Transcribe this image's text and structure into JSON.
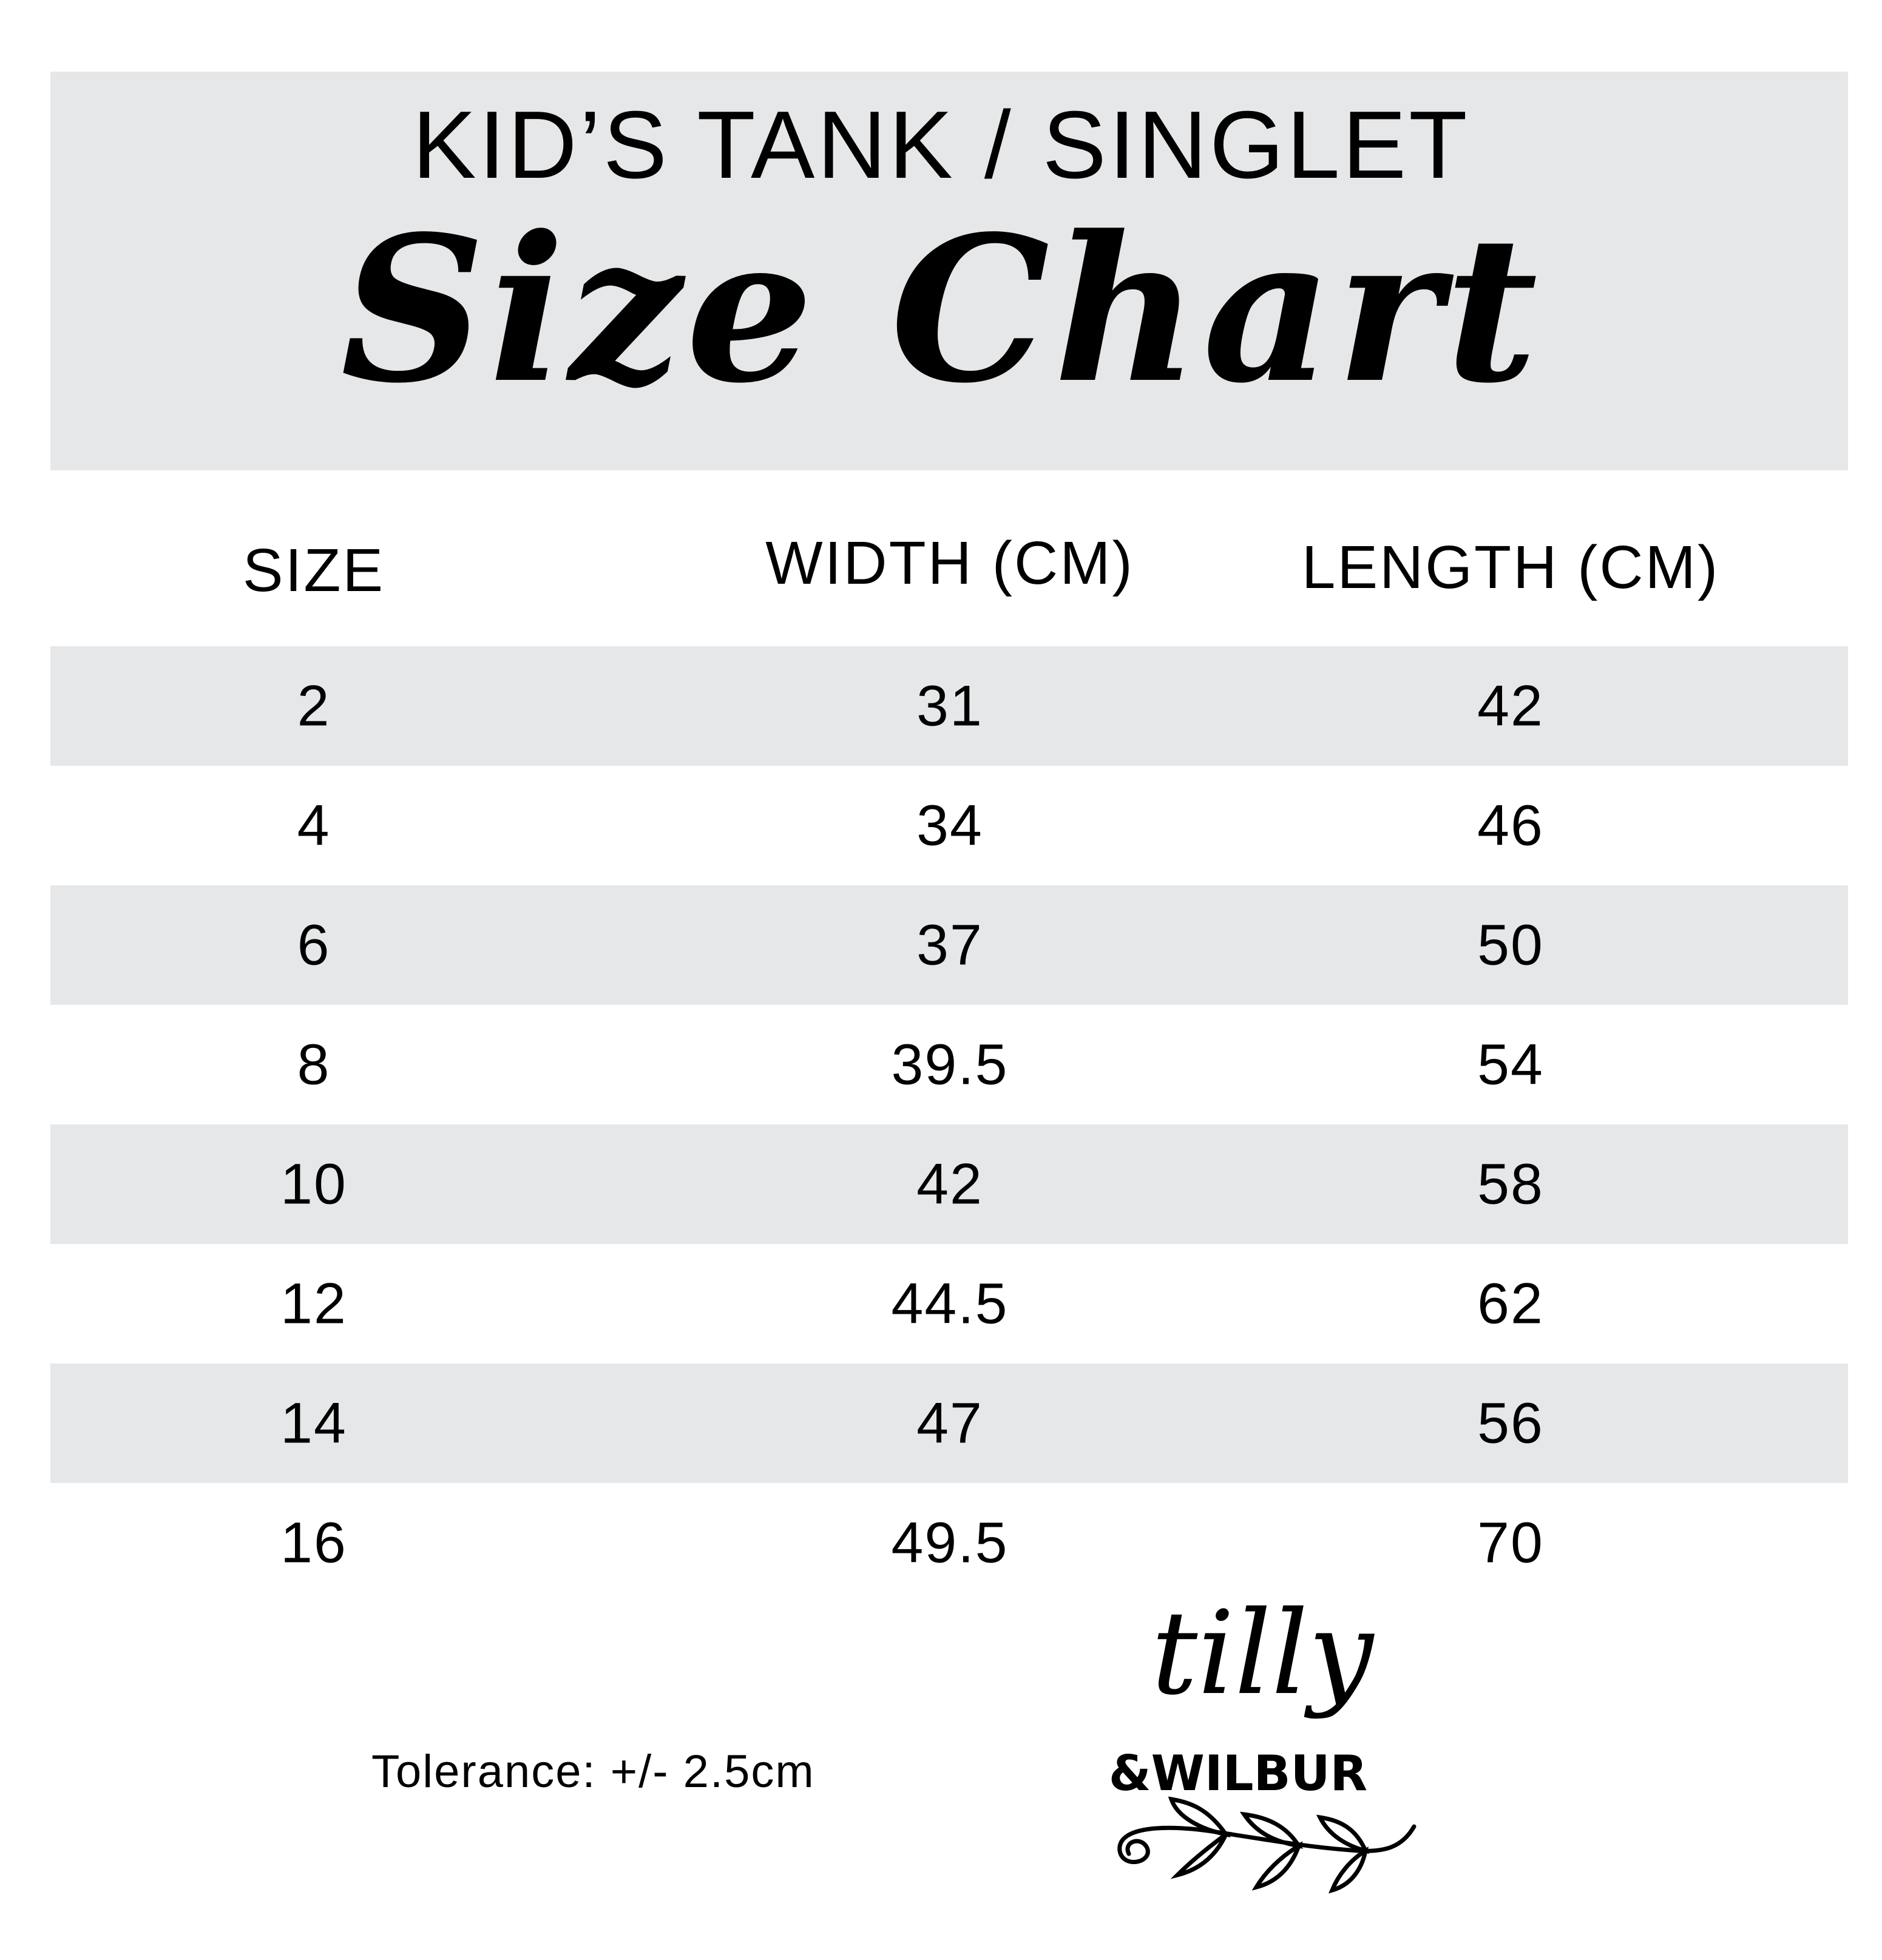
{
  "header": {
    "subtitle": "KID’S TANK / SINGLET",
    "title": "Size Chart",
    "background_color": "#e6e7e8"
  },
  "table": {
    "columns": [
      "SIZE",
      "WIDTH (CM)",
      "LENGTH (CM)"
    ],
    "rows": [
      [
        "2",
        "31",
        "42"
      ],
      [
        "4",
        "34",
        "46"
      ],
      [
        "6",
        "37",
        "50"
      ],
      [
        "8",
        "39.5",
        "54"
      ],
      [
        "10",
        "42",
        "58"
      ],
      [
        "12",
        "44.5",
        "62"
      ],
      [
        "14",
        "47",
        "56"
      ],
      [
        "16",
        "49.5",
        "70"
      ]
    ],
    "stripe_color": "#e6e7e8"
  },
  "footer": {
    "tolerance": "Tolerance: +/- 2.5cm"
  },
  "logo": {
    "line1": "tilly",
    "line2": "&WILBUR",
    "icon": "leaf-vine-icon"
  }
}
